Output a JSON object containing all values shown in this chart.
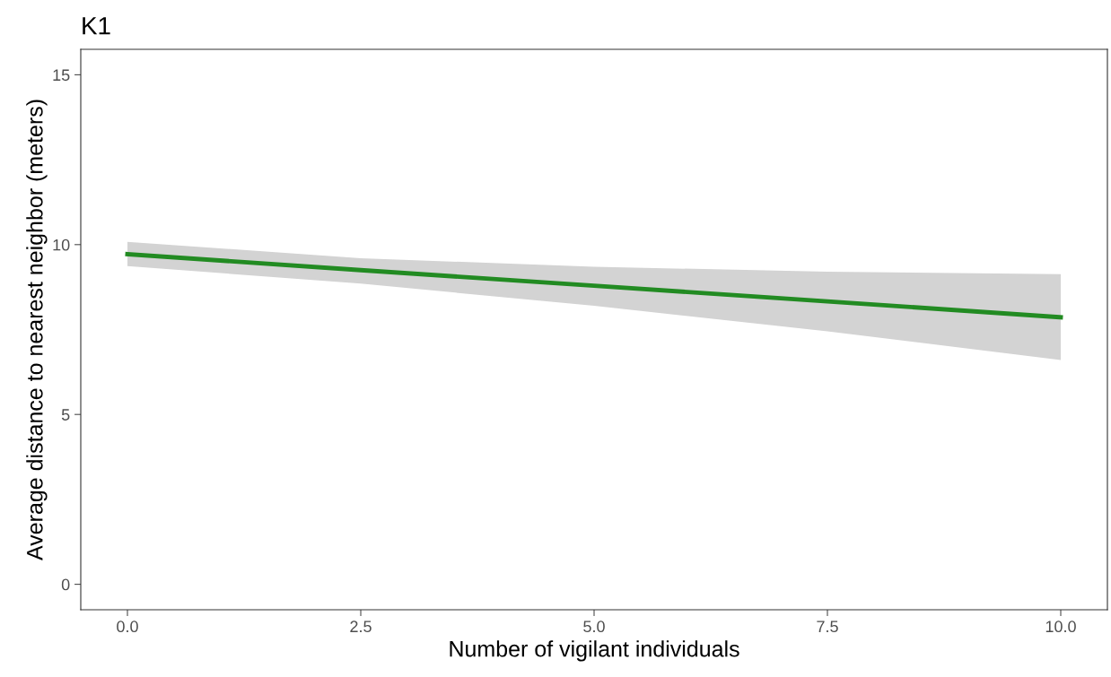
{
  "chart_data": {
    "type": "line",
    "title": "K1",
    "xlabel": "Number of vigilant individuals",
    "ylabel": "Average distance to nearest neighbor (meters)",
    "x": [
      0,
      2.5,
      5,
      7.5,
      10
    ],
    "series": [
      {
        "color": "#228b22",
        "values": [
          9.72,
          9.25,
          8.79,
          8.33,
          7.86
        ],
        "lower": [
          9.37,
          8.85,
          8.2,
          7.45,
          6.6
        ],
        "upper": [
          10.08,
          9.6,
          9.35,
          9.2,
          9.13
        ]
      }
    ],
    "xlim": [
      -0.5,
      10.5
    ],
    "ylim": [
      -0.75,
      15.75
    ],
    "xticks": [
      {
        "value": 0,
        "label": "0.0"
      },
      {
        "value": 2.5,
        "label": "2.5"
      },
      {
        "value": 5,
        "label": "5.0"
      },
      {
        "value": 7.5,
        "label": "7.5"
      },
      {
        "value": 10,
        "label": "10.0"
      }
    ],
    "yticks": [
      0,
      5,
      10,
      15
    ],
    "grid": false,
    "legend": false,
    "marker": "none",
    "line_style": "solid"
  }
}
